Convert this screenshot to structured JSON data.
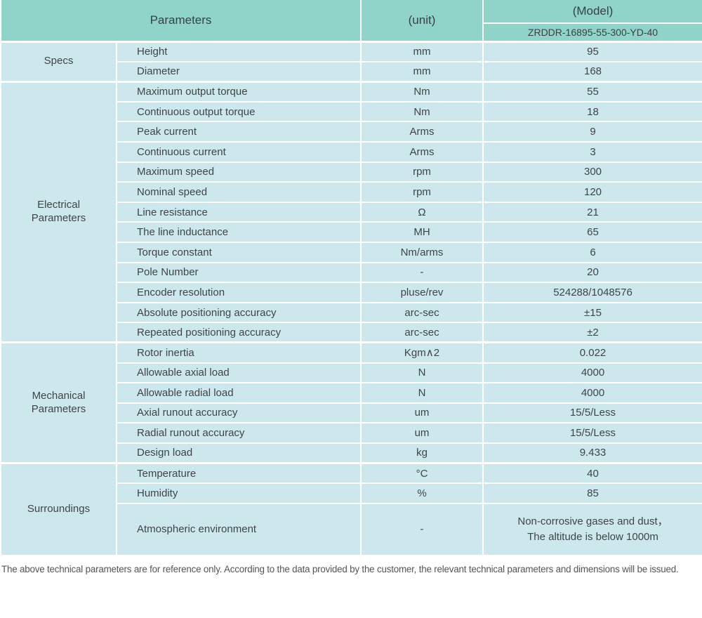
{
  "colors": {
    "header_bg": "#8fd3c9",
    "row_bg": "#cce8ed",
    "border_color": "#ffffff",
    "text_color": "#3f4447",
    "footer_text": "#555555"
  },
  "header": {
    "parameters_label": "Parameters",
    "unit_label": "(unit)",
    "model_label": "(Model)",
    "model_number": "ZRDDR-16895-55-300-YD-40"
  },
  "sections": [
    {
      "label": "Specs",
      "rows": [
        {
          "param": "Height",
          "unit": "mm",
          "value": "95"
        },
        {
          "param": "Diameter",
          "unit": "mm",
          "value": "168"
        }
      ]
    },
    {
      "label": "Electrical Parameters",
      "rows": [
        {
          "param": "Maximum output torque",
          "unit": "Nm",
          "value": "55"
        },
        {
          "param": "Continuous output torque",
          "unit": "Nm",
          "value": "18"
        },
        {
          "param": "Peak current",
          "unit": "Arms",
          "value": "9"
        },
        {
          "param": "Continuous current",
          "unit": "Arms",
          "value": "3"
        },
        {
          "param": "Maximum speed",
          "unit": "rpm",
          "value": "300"
        },
        {
          "param": "Nominal speed",
          "unit": "rpm",
          "value": "120"
        },
        {
          "param": "Line resistance",
          "unit": "Ω",
          "value": "21"
        },
        {
          "param": "The line inductance",
          "unit": "MH",
          "value": "65"
        },
        {
          "param": "Torque constant",
          "unit": "Nm/arms",
          "value": "6"
        },
        {
          "param": "Pole Number",
          "unit": "-",
          "value": "20"
        },
        {
          "param": "Encoder resolution",
          "unit": "pluse/rev",
          "value": "524288/1048576"
        },
        {
          "param": "Absolute positioning accuracy",
          "unit": "arc-sec",
          "value": "±15"
        },
        {
          "param": "Repeated positioning accuracy",
          "unit": "arc-sec",
          "value": "±2"
        }
      ]
    },
    {
      "label": "Mechanical Parameters",
      "rows": [
        {
          "param": "Rotor inertia",
          "unit": "Kgm∧2",
          "value": "0.022"
        },
        {
          "param": "Allowable axial load",
          "unit": "N",
          "value": "4000"
        },
        {
          "param": "Allowable radial load",
          "unit": "N",
          "value": "4000"
        },
        {
          "param": "Axial runout accuracy",
          "unit": "um",
          "value": "15/5/Less"
        },
        {
          "param": "Radial runout accuracy",
          "unit": "um",
          "value": "15/5/Less"
        },
        {
          "param": "Design load",
          "unit": "kg",
          "value": "9.433"
        }
      ]
    },
    {
      "label": "Surroundings",
      "rows": [
        {
          "param": "Temperature",
          "unit": "°C",
          "value": "40"
        },
        {
          "param": "Humidity",
          "unit": "%",
          "value": "85"
        },
        {
          "param": "Atmospheric environment",
          "unit": "-",
          "value": "Non-corrosive gases and dust，\nThe altitude is below 1000m"
        }
      ]
    }
  ],
  "footer": {
    "note": "The above technical parameters are for reference only. According to the data provided by the customer, the relevant technical parameters and dimensions will be issued."
  }
}
